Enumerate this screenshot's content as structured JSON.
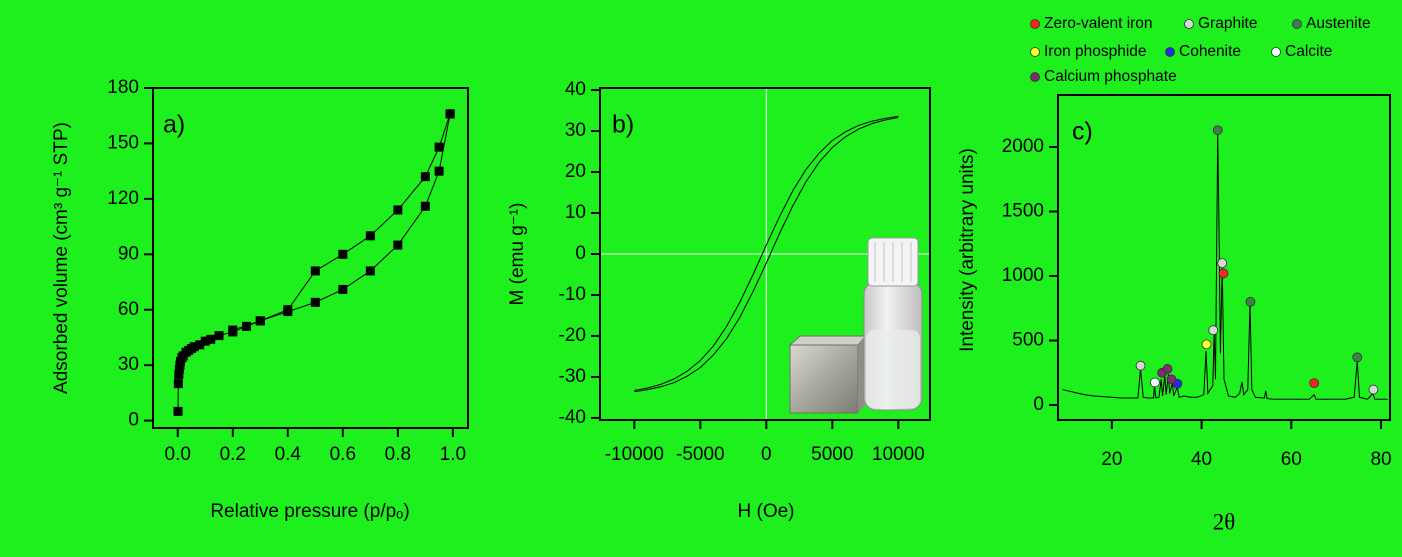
{
  "chart_data": [
    {
      "type": "line",
      "annotation": "a)",
      "xlabel": "Relative pressure (p/pₒ)",
      "ylabel": "Adsorbed volume (cm³ g⁻¹ STP)",
      "xlim": [
        -0.09,
        1.055
      ],
      "ylim": [
        -4,
        180
      ],
      "xticks": [
        {
          "value": 0,
          "label": "0.0"
        },
        0.2,
        0.4,
        0.6,
        0.8,
        {
          "value": 1,
          "label": "1.0"
        }
      ],
      "yticks": [
        0,
        30,
        60,
        90,
        120,
        150,
        180
      ],
      "series": [
        {
          "color": "#000000",
          "marker": "square",
          "x": [
            0.001,
            0.002,
            0.004,
            0.006,
            0.008,
            0.01,
            0.015,
            0.02,
            0.03,
            0.04,
            0.05,
            0.06,
            0.08,
            0.1,
            0.12,
            0.15,
            0.2,
            0.25,
            0.3,
            0.4,
            0.5,
            0.6,
            0.7,
            0.8,
            0.9,
            0.95,
            0.99
          ],
          "values": [
            5,
            20,
            25,
            28,
            30,
            32,
            34,
            35,
            37,
            38,
            39,
            40,
            41,
            43,
            44,
            46,
            48,
            51,
            54,
            59,
            64,
            71,
            81,
            95,
            116,
            135,
            166
          ]
        },
        {
          "color": "#000000",
          "marker": "square",
          "x": [
            0.99,
            0.95,
            0.9,
            0.8,
            0.7,
            0.6,
            0.5,
            0.4,
            0.3,
            0.2
          ],
          "values": [
            166,
            148,
            132,
            114,
            100,
            90,
            81,
            60,
            54,
            49
          ]
        }
      ]
    },
    {
      "type": "line",
      "annotation": "b)",
      "xlabel": "H (Oe)",
      "ylabel": "M (emu g⁻¹)",
      "xlim": [
        -12600,
        12400
      ],
      "ylim": [
        -40.5,
        40.5
      ],
      "xticks": [
        -10000,
        -5000,
        0,
        5000,
        10000
      ],
      "yticks": [
        -40,
        -30,
        -20,
        -10,
        0,
        10,
        20,
        30,
        40
      ],
      "zero_lines": true,
      "series": [
        {
          "color": "#000000",
          "x": [
            -10000,
            -9000,
            -8000,
            -7000,
            -6000,
            -5000,
            -4000,
            -3000,
            -2000,
            -1000,
            0,
            1000,
            2000,
            3000,
            4000,
            5000,
            6000,
            7000,
            8000,
            9000,
            10000
          ],
          "values": [
            -33.3,
            -32.7,
            -31.8,
            -30.5,
            -28.6,
            -26.0,
            -22.4,
            -17.6,
            -11.7,
            -5.0,
            2.2,
            9.1,
            15.4,
            20.6,
            24.6,
            27.7,
            29.8,
            31.4,
            32.4,
            33.1,
            33.6
          ]
        },
        {
          "color": "#000000",
          "x": [
            -10000,
            -9000,
            -8000,
            -7000,
            -6000,
            -5000,
            -4000,
            -3000,
            -2000,
            -1000,
            0,
            1000,
            2000,
            3000,
            4000,
            5000,
            6000,
            7000,
            8000,
            9000,
            10000
          ],
          "values": [
            -33.6,
            -33.1,
            -32.4,
            -31.4,
            -29.8,
            -27.7,
            -24.6,
            -20.6,
            -15.4,
            -9.1,
            -2.2,
            5.0,
            11.7,
            17.6,
            22.4,
            26.0,
            28.6,
            30.5,
            31.8,
            32.7,
            33.3
          ]
        }
      ]
    },
    {
      "type": "line",
      "annotation": "c)",
      "xlabel": "2θ",
      "ylabel": "Intensity (arbitrary units)",
      "xlim": [
        8,
        82
      ],
      "ylim": [
        -116,
        2403
      ],
      "xticks": [
        20,
        40,
        60,
        80
      ],
      "yticks": [
        0,
        500,
        1000,
        1500,
        2000
      ],
      "series": [
        {
          "color": "#000000",
          "x": [
            9,
            12,
            14,
            16,
            18,
            20,
            22,
            24,
            25.8,
            26.4,
            27,
            28,
            29.3,
            29.5,
            29.8,
            30.5,
            31,
            31.3,
            31.8,
            32.1,
            32.6,
            32.9,
            33.5,
            33.8,
            34.6,
            35,
            36,
            37.5,
            39,
            40.5,
            41,
            41.4,
            42.5,
            42.8,
            43.1,
            43.6,
            43.9,
            44.2,
            44.6,
            45,
            46,
            47.5,
            48.5,
            49,
            49.4,
            50.3,
            50.8,
            51.2,
            52,
            54,
            54.3,
            54.6,
            56,
            58,
            60,
            62,
            64,
            65.1,
            65.5,
            68,
            70,
            72,
            74,
            74.7,
            75.2,
            77,
            78.2,
            78.6,
            80,
            81.5
          ],
          "values": [
            120,
            95,
            80,
            70,
            65,
            60,
            55,
            55,
            55,
            280,
            60,
            55,
            55,
            150,
            55,
            60,
            200,
            70,
            230,
            80,
            240,
            90,
            170,
            70,
            140,
            60,
            70,
            60,
            60,
            80,
            420,
            90,
            150,
            560,
            200,
            2100,
            1350,
            400,
            1080,
            200,
            70,
            60,
            90,
            180,
            80,
            120,
            790,
            120,
            60,
            55,
            110,
            50,
            45,
            45,
            45,
            45,
            45,
            80,
            45,
            45,
            45,
            45,
            60,
            340,
            60,
            45,
            90,
            45,
            45,
            45
          ]
        }
      ],
      "markers": [
        {
          "name": "Zero-valent iron",
          "color": "#ff2020",
          "x": [
            44.9,
            65.1
          ],
          "values": [
            1020,
            170
          ]
        },
        {
          "name": "Graphite",
          "color": "#d8d8d8",
          "x": [
            26.4,
            42.6,
            44.6,
            78.3
          ],
          "values": [
            305,
            580,
            1100,
            120
          ]
        },
        {
          "name": "Austenite",
          "color": "#3f7f4a",
          "x": [
            43.6,
            50.9,
            74.7
          ],
          "values": [
            2130,
            800,
            370
          ]
        },
        {
          "name": "Iron phosphide",
          "color": "#ffff30",
          "x": [
            41.1
          ],
          "values": [
            470
          ]
        },
        {
          "name": "Cohenite",
          "color": "#1f2fe0",
          "x": [
            34.6
          ],
          "values": [
            165
          ]
        },
        {
          "name": "Calcite",
          "color": "#eaffff",
          "x": [
            29.6
          ],
          "values": [
            175
          ]
        },
        {
          "name": "Calcium phosphate",
          "color": "#7a2f6e",
          "x": [
            31.2,
            32.4,
            33.3
          ],
          "values": [
            250,
            280,
            200
          ]
        }
      ]
    }
  ]
}
